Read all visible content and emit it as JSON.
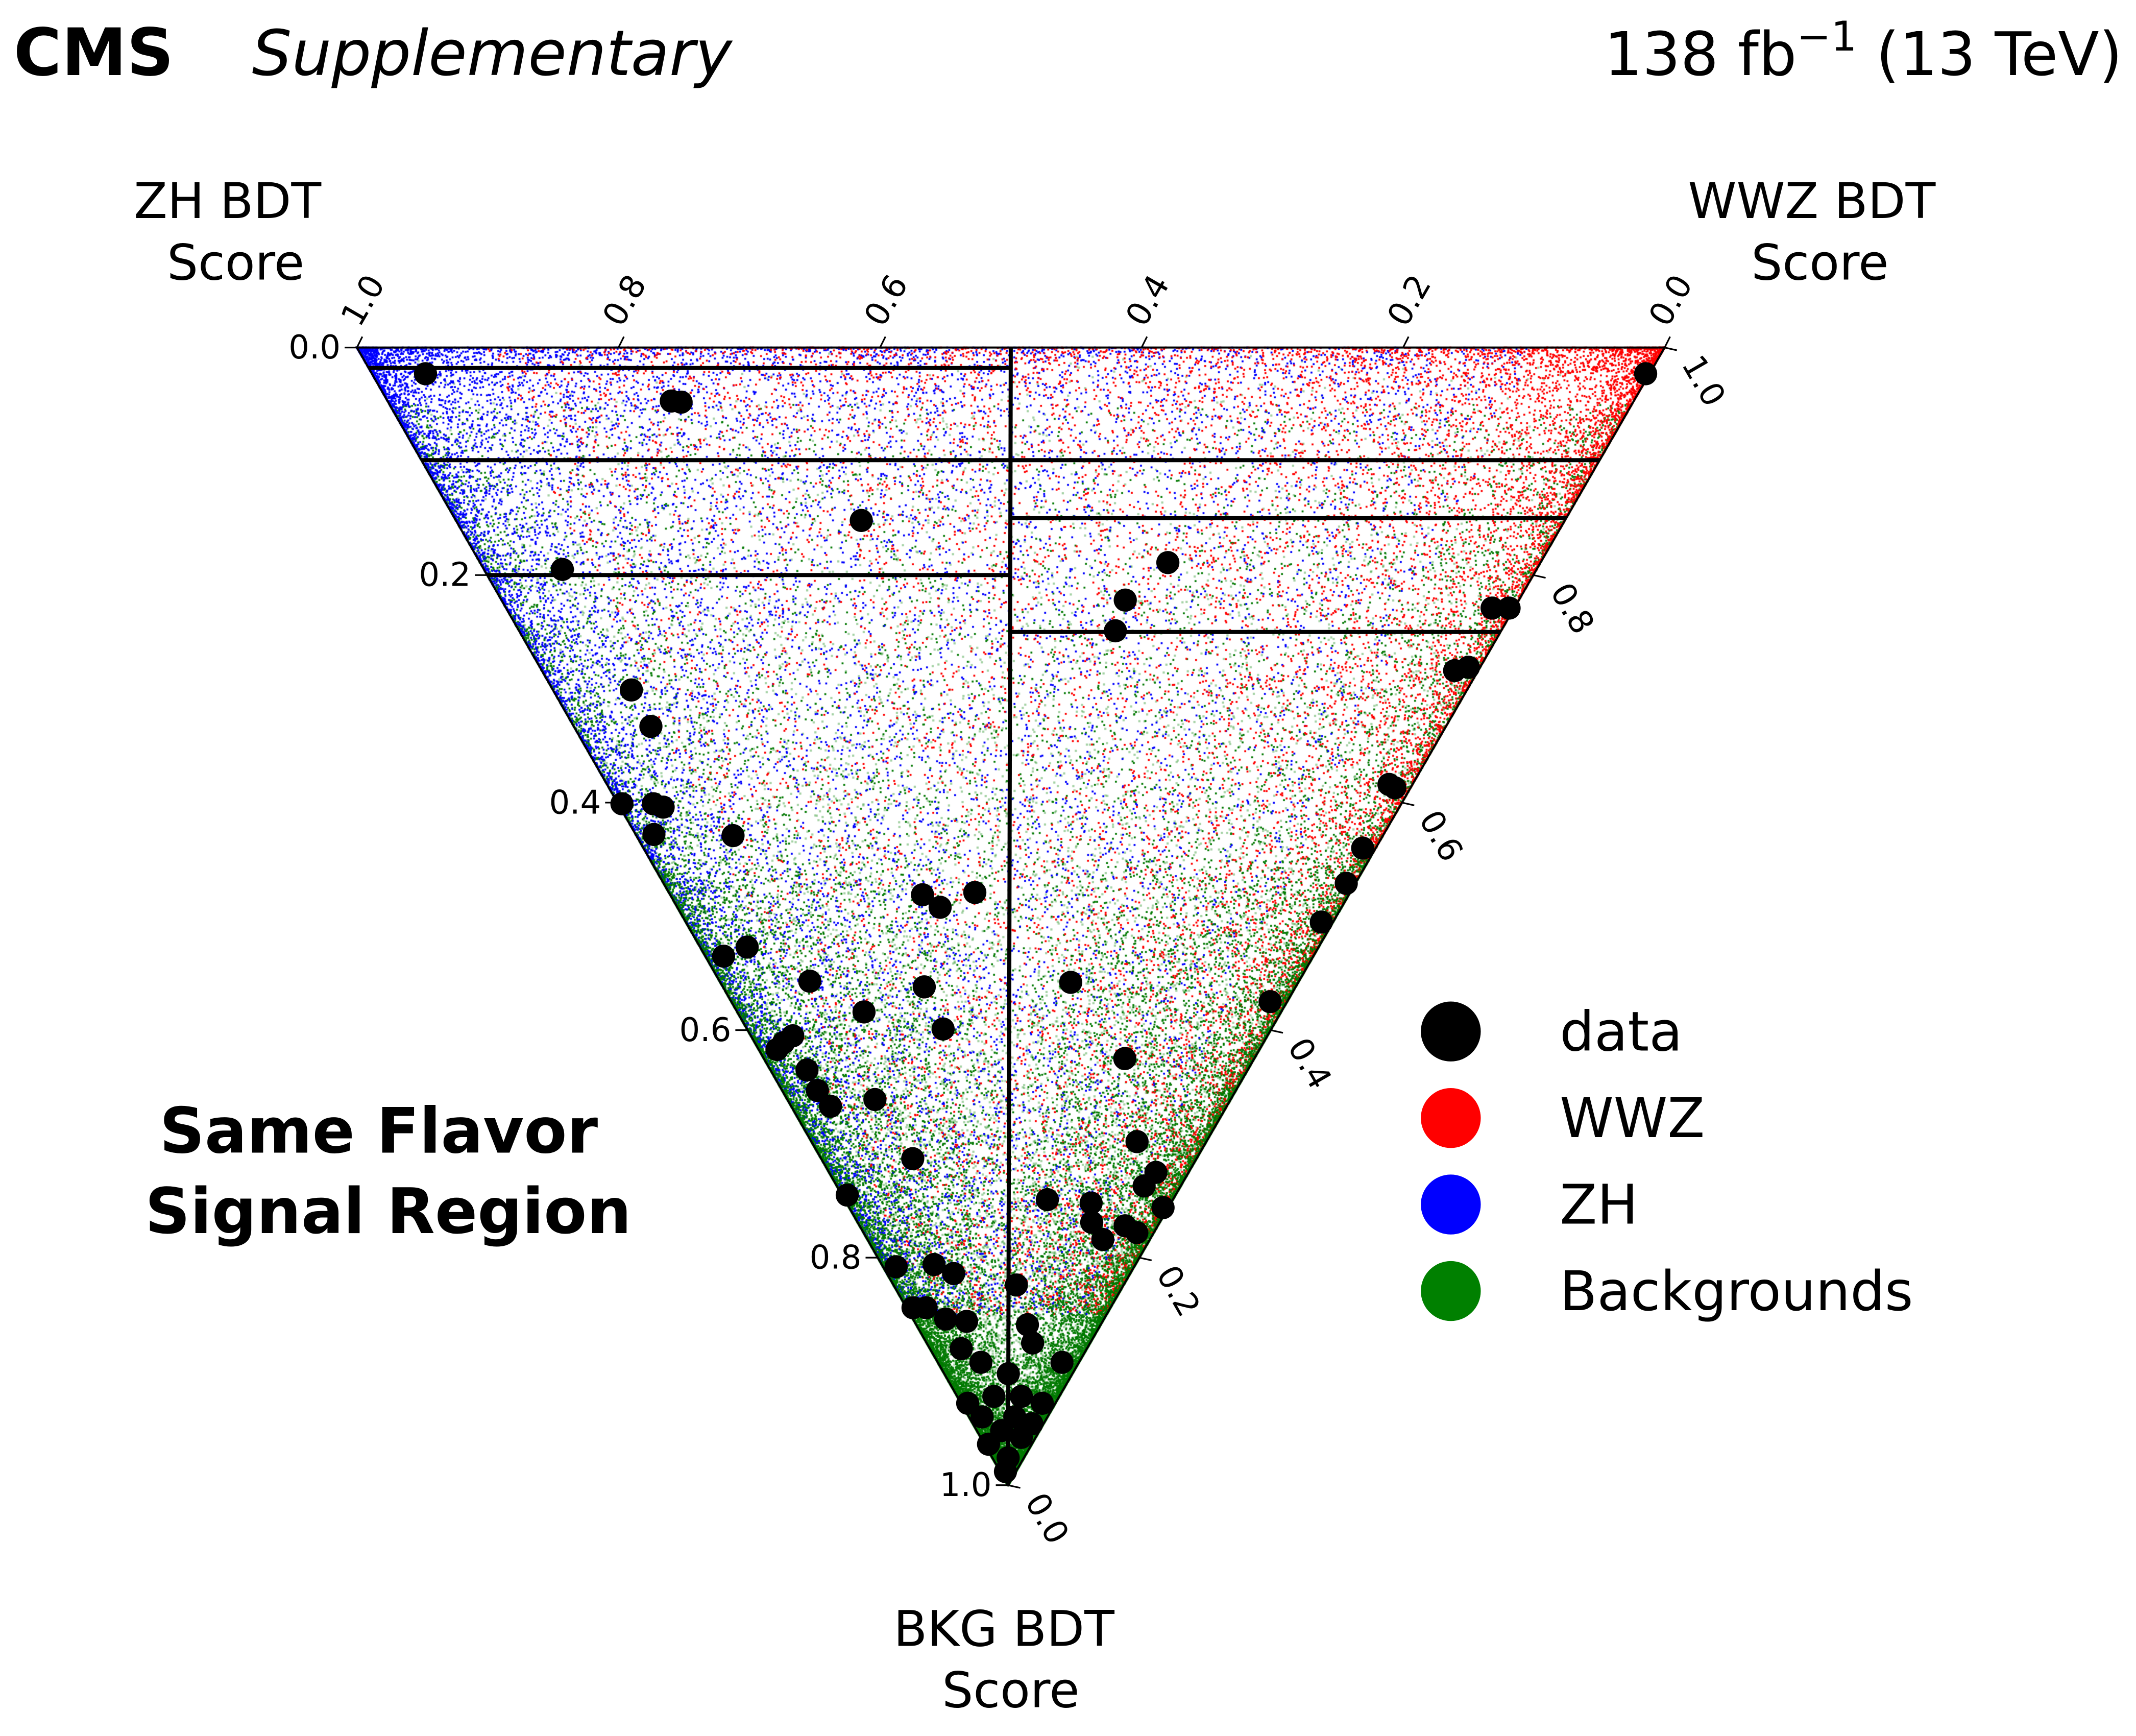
{
  "header": {
    "experiment": "CMS",
    "tag": "Supplementary",
    "lumi": "138 fb",
    "lumi_exp": "−1",
    "energy": " (13 TeV)"
  },
  "chart_data": {
    "type": "scatter",
    "subtype": "ternary",
    "axes": {
      "top": {
        "label_line1": "ZH BDT",
        "label_line2": "Score",
        "ticks": [
          "1.0",
          "0.8",
          "0.6",
          "0.4",
          "0.2",
          "0.0"
        ]
      },
      "right": {
        "label_line1": "WWZ BDT",
        "label_line2": "Score",
        "ticks": [
          "1.0",
          "0.8",
          "0.6",
          "0.4",
          "0.2",
          "0.0"
        ]
      },
      "left": {
        "label_line1": "BKG BDT",
        "label_line2": "Score",
        "ticks": [
          "0.0",
          "0.2",
          "0.4",
          "0.6",
          "0.8",
          "1.0"
        ]
      },
      "range": [
        0,
        1
      ]
    },
    "annotation_line1": "Same Flavor",
    "annotation_line2": "Signal Region",
    "legend": {
      "placement": "right",
      "entries": [
        {
          "label": "data",
          "color": "#000000"
        },
        {
          "label": "WWZ",
          "color": "#ff0000"
        },
        {
          "label": "ZH",
          "color": "#0000ff"
        },
        {
          "label": "Backgrounds",
          "color": "#008000"
        }
      ]
    },
    "category_boundaries": {
      "zh_side_bkg_cuts": [
        0.018,
        0.099,
        0.2
      ],
      "wwz_side_bkg_cuts": [
        0.099,
        0.15,
        0.25
      ],
      "divider": "ZH score = WWZ score"
    },
    "data_points_order": [
      "ZH",
      "WWZ",
      "BKG"
    ],
    "data_points": [
      [
        0.936,
        0.041,
        0.023
      ],
      [
        0.736,
        0.217,
        0.047
      ],
      [
        0.728,
        0.224,
        0.048
      ],
      [
        0.538,
        0.31,
        0.152
      ],
      [
        0.745,
        0.06,
        0.195
      ],
      [
        0.285,
        0.526,
        0.189
      ],
      [
        0.301,
        0.477,
        0.222
      ],
      [
        0.295,
        0.456,
        0.249
      ],
      [
        0.639,
        0.06,
        0.301
      ],
      [
        0.608,
        0.059,
        0.333
      ],
      [
        0.596,
        0.003,
        0.401
      ],
      [
        0.572,
        0.027,
        0.401
      ],
      [
        0.563,
        0.033,
        0.404
      ],
      [
        0.558,
        0.014,
        0.428
      ],
      [
        0.497,
        0.074,
        0.429
      ],
      [
        0.326,
        0.193,
        0.481
      ],
      [
        0.307,
        0.201,
        0.492
      ],
      [
        0.287,
        0.234,
        0.479
      ],
      [
        0.437,
        0.036,
        0.527
      ],
      [
        0.451,
        0.014,
        0.535
      ],
      [
        0.374,
        0.069,
        0.557
      ],
      [
        0.284,
        0.154,
        0.562
      ],
      [
        0.174,
        0.268,
        0.558
      ],
      [
        0.319,
        0.097,
        0.584
      ],
      [
        0.251,
        0.15,
        0.599
      ],
      [
        0.367,
        0.022,
        0.611
      ],
      [
        0.369,
        0.014,
        0.617
      ],
      [
        0.363,
        0.032,
        0.605
      ],
      [
        0.337,
        0.028,
        0.635
      ],
      [
        0.32,
        0.027,
        0.653
      ],
      [
        0.303,
        0.03,
        0.667
      ],
      [
        0.272,
        0.067,
        0.661
      ],
      [
        0.099,
        0.276,
        0.625
      ],
      [
        0.217,
        0.07,
        0.713
      ],
      [
        0.251,
        0.004,
        0.745
      ],
      [
        0.096,
        0.155,
        0.749
      ],
      [
        0.053,
        0.249,
        0.698
      ],
      [
        0.025,
        0.25,
        0.725
      ],
      [
        0.028,
        0.235,
        0.737
      ],
      [
        0.061,
        0.187,
        0.752
      ],
      [
        0.052,
        0.179,
        0.769
      ],
      [
        0.036,
        0.18,
        0.784
      ],
      [
        0.025,
        0.203,
        0.772
      ],
      [
        0.013,
        0.209,
        0.778
      ],
      [
        0.004,
        0.24,
        0.756
      ],
      [
        0.182,
        0.01,
        0.808
      ],
      [
        0.154,
        0.04,
        0.806
      ],
      [
        0.135,
        0.051,
        0.814
      ],
      [
        0.082,
        0.094,
        0.824
      ],
      [
        0.151,
        0.005,
        0.844
      ],
      [
        0.141,
        0.015,
        0.844
      ],
      [
        0.104,
        0.04,
        0.856
      ],
      [
        0.121,
        0.025,
        0.854
      ],
      [
        0.056,
        0.085,
        0.859
      ],
      [
        0.044,
        0.081,
        0.875
      ],
      [
        0.096,
        0.024,
        0.88
      ],
      [
        0.075,
        0.033,
        0.892
      ],
      [
        0.049,
        0.049,
        0.902
      ],
      [
        0.013,
        0.095,
        0.892
      ],
      [
        0.067,
        0.005,
        0.928
      ],
      [
        0.05,
        0.028,
        0.922
      ],
      [
        0.029,
        0.049,
        0.922
      ],
      [
        0.01,
        0.062,
        0.928
      ],
      [
        0.025,
        0.035,
        0.94
      ],
      [
        0.029,
        0.019,
        0.952
      ],
      [
        0.011,
        0.031,
        0.958
      ],
      [
        0.012,
        0.012,
        0.976
      ],
      [
        0.008,
        0.004,
        0.988
      ],
      [
        0.003,
        0.974,
        0.023
      ],
      [
        0.017,
        0.754,
        0.229
      ],
      [
        0.004,
        0.767,
        0.229
      ],
      [
        0.018,
        0.698,
        0.284
      ],
      [
        0.009,
        0.71,
        0.281
      ],
      [
        0.018,
        0.598,
        0.384
      ],
      [
        0.012,
        0.601,
        0.387
      ],
      [
        0.01,
        0.55,
        0.44
      ],
      [
        0.007,
        0.522,
        0.471
      ],
      [
        0.009,
        0.486,
        0.505
      ],
      [
        0.013,
        0.412,
        0.575
      ],
      [
        0.05,
        0.01,
        0.94
      ],
      [
        0.033,
        0.003,
        0.964
      ],
      [
        0.009,
        0.045,
        0.946
      ]
    ]
  }
}
